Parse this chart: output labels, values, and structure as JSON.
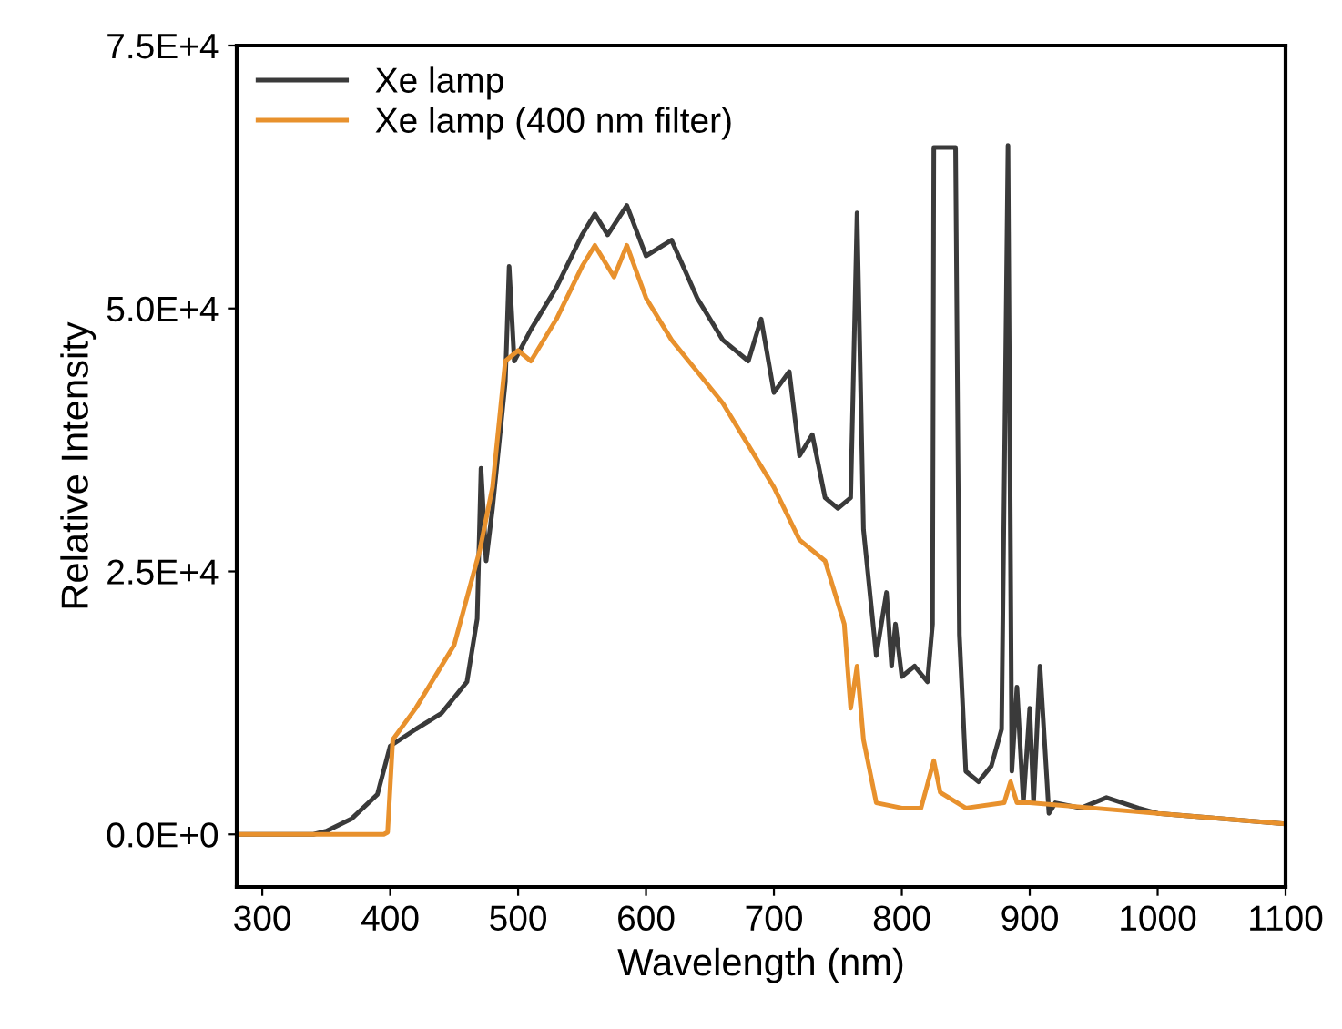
{
  "chart_data": {
    "type": "line",
    "xlabel": "Wavelength (nm)",
    "ylabel": "Relative Intensity",
    "xlim": [
      280,
      1100
    ],
    "xticks": [
      300,
      400,
      500,
      600,
      700,
      800,
      900,
      1000,
      1100
    ],
    "ylim": [
      -5000,
      75000
    ],
    "yticks": [
      {
        "value": 0,
        "label": "0.0E+0"
      },
      {
        "value": 25000,
        "label": "2.5E+4"
      },
      {
        "value": 50000,
        "label": "5.0E+4"
      },
      {
        "value": 75000,
        "label": "7.5E+4"
      }
    ],
    "grid": false,
    "legend": "top left",
    "marker": "none",
    "line_style": "solid",
    "series": [
      {
        "name": "Xe lamp",
        "color": "#3a3a3a",
        "x": [
          280,
          340,
          350,
          370,
          390,
          400,
          420,
          440,
          460,
          468,
          471,
          475,
          480,
          490,
          493,
          497,
          510,
          530,
          550,
          560,
          570,
          585,
          600,
          620,
          640,
          660,
          680,
          690,
          700,
          712,
          720,
          730,
          740,
          750,
          760,
          765,
          770,
          780,
          788,
          792,
          795,
          800,
          810,
          820,
          824,
          825,
          842,
          845,
          850,
          860,
          870,
          878,
          883,
          886,
          890,
          895,
          900,
          903,
          908,
          915,
          920,
          940,
          960,
          985,
          1000,
          1100
        ],
        "values": [
          0,
          0,
          300,
          1500,
          3800,
          8400,
          10000,
          11500,
          14500,
          20500,
          34800,
          26000,
          31000,
          43000,
          54000,
          45000,
          48000,
          52000,
          57000,
          59000,
          57000,
          59800,
          55000,
          56500,
          51000,
          47000,
          45000,
          49000,
          42000,
          44000,
          36000,
          38000,
          32000,
          31000,
          32000,
          59100,
          29000,
          17000,
          23000,
          16000,
          20000,
          15000,
          16000,
          14500,
          20000,
          65300,
          65300,
          19000,
          6000,
          5000,
          6500,
          10000,
          65500,
          6000,
          14000,
          3000,
          12000,
          3000,
          16000,
          2000,
          3000,
          2500,
          3500,
          2500,
          2000,
          1000
        ]
      },
      {
        "name": "Xe lamp (400 nm filter)",
        "color": "#e8912d",
        "x": [
          280,
          395,
          398,
          402,
          420,
          450,
          470,
          480,
          490,
          500,
          510,
          530,
          550,
          560,
          575,
          585,
          600,
          620,
          640,
          660,
          680,
          700,
          720,
          740,
          755,
          760,
          765,
          770,
          780,
          800,
          815,
          825,
          830,
          850,
          880,
          885,
          890,
          900,
          950,
          1000,
          1100
        ],
        "values": [
          0,
          0,
          200,
          9000,
          12000,
          18000,
          27000,
          33000,
          45000,
          46000,
          45000,
          49000,
          54000,
          56000,
          53000,
          56000,
          51000,
          47000,
          44000,
          41000,
          37000,
          33000,
          28000,
          26000,
          20000,
          12000,
          16000,
          9000,
          3000,
          2500,
          2500,
          7000,
          4000,
          2500,
          3000,
          5000,
          3000,
          3000,
          2500,
          2000,
          1000
        ]
      }
    ]
  }
}
